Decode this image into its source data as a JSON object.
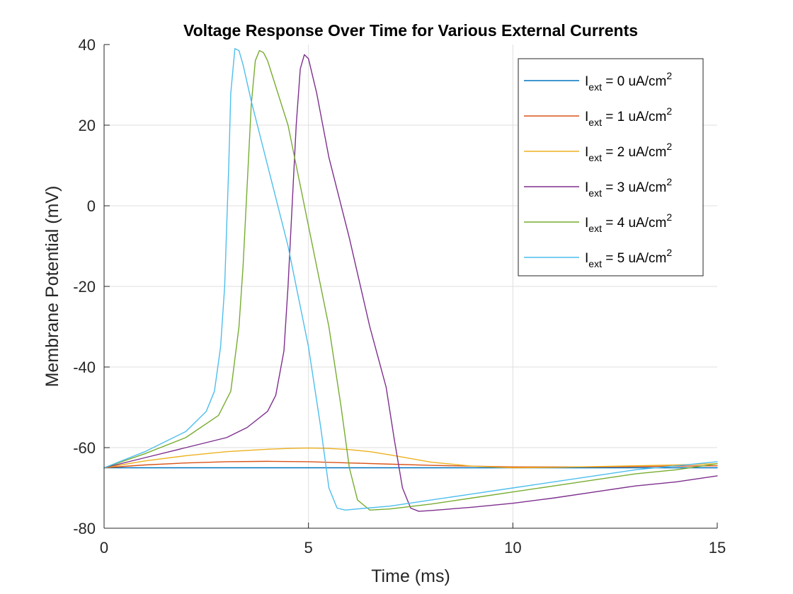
{
  "chart_data": {
    "type": "line",
    "title": "Voltage Response Over Time for Various External Currents",
    "xlabel": "Time (ms)",
    "ylabel": "Membrane Potential (mV)",
    "xlim": [
      0,
      15
    ],
    "ylim": [
      -80,
      40
    ],
    "xticks": [
      0,
      5,
      10,
      15
    ],
    "xtick_labels": [
      "0",
      "5",
      "10",
      "15"
    ],
    "yticks": [
      -80,
      -60,
      -40,
      -20,
      0,
      20,
      40
    ],
    "ytick_labels": [
      "-80",
      "-60",
      "-40",
      "-20",
      "0",
      "20",
      "40"
    ],
    "grid": true,
    "legend_position": "top-right",
    "series": [
      {
        "name": "I_ext = 0 uA/cm^2",
        "legend": {
          "prefix": "I",
          "sub": "ext",
          "mid": " = 0 uA/cm",
          "sup": "2"
        },
        "color": "#0072BD",
        "x": [
          0,
          1,
          2,
          3,
          4,
          5,
          6,
          7,
          8,
          9,
          10,
          11,
          12,
          13,
          14,
          15
        ],
        "y": [
          -65,
          -65,
          -65,
          -65,
          -65,
          -65,
          -65,
          -65,
          -65,
          -65,
          -65,
          -65,
          -65,
          -65,
          -65,
          -65
        ]
      },
      {
        "name": "I_ext = 1 uA/cm^2",
        "legend": {
          "prefix": "I",
          "sub": "ext",
          "mid": " = 1 uA/cm",
          "sup": "2"
        },
        "color": "#D95319",
        "x": [
          0,
          1,
          2,
          3,
          4,
          5,
          6,
          7,
          8,
          9,
          10,
          11,
          12,
          13,
          14,
          15
        ],
        "y": [
          -65,
          -64.3,
          -63.8,
          -63.5,
          -63.4,
          -63.5,
          -63.8,
          -64.1,
          -64.4,
          -64.6,
          -64.8,
          -64.8,
          -64.8,
          -64.7,
          -64.6,
          -64.5
        ]
      },
      {
        "name": "I_ext = 2 uA/cm^2",
        "legend": {
          "prefix": "I",
          "sub": "ext",
          "mid": " = 2 uA/cm",
          "sup": "2"
        },
        "color": "#EDB120",
        "x": [
          0,
          1,
          2,
          3,
          4,
          4.5,
          5,
          5.5,
          6,
          6.5,
          7,
          7.5,
          8,
          9,
          10,
          11,
          12,
          13,
          14,
          15
        ],
        "y": [
          -65,
          -63.3,
          -62.0,
          -61.0,
          -60.4,
          -60.2,
          -60.1,
          -60.2,
          -60.5,
          -61.0,
          -61.8,
          -62.7,
          -63.6,
          -64.6,
          -65.0,
          -64.9,
          -64.7,
          -64.5,
          -64.3,
          -64.0
        ]
      },
      {
        "name": "I_ext = 3 uA/cm^2",
        "legend": {
          "prefix": "I",
          "sub": "ext",
          "mid": " = 3 uA/cm",
          "sup": "2"
        },
        "color": "#7E2F8E",
        "x": [
          0,
          1,
          2,
          3,
          3.5,
          4,
          4.2,
          4.4,
          4.5,
          4.6,
          4.7,
          4.8,
          4.9,
          5.0,
          5.2,
          5.5,
          6.0,
          6.5,
          6.9,
          7.1,
          7.3,
          7.5,
          7.7,
          8,
          9,
          10,
          11,
          12,
          13,
          14,
          15
        ],
        "y": [
          -65,
          -62.5,
          -60.0,
          -57.5,
          -55.0,
          -51.0,
          -47.0,
          -36.0,
          -20.0,
          0.0,
          20.0,
          34.0,
          37.5,
          36.5,
          28.0,
          12.0,
          -8.0,
          -30.0,
          -45.0,
          -58.0,
          -70.0,
          -75.0,
          -75.8,
          -75.6,
          -74.8,
          -73.8,
          -72.5,
          -71.0,
          -69.5,
          -68.5,
          -67.0
        ]
      },
      {
        "name": "I_ext = 4 uA/cm^2",
        "legend": {
          "prefix": "I",
          "sub": "ext",
          "mid": " = 4 uA/cm",
          "sup": "2"
        },
        "color": "#77AC30",
        "x": [
          0,
          1,
          2,
          2.8,
          3.1,
          3.3,
          3.4,
          3.5,
          3.6,
          3.7,
          3.8,
          3.9,
          4.0,
          4.5,
          5.0,
          5.5,
          5.8,
          6.0,
          6.2,
          6.5,
          7,
          8,
          9,
          10,
          11,
          12,
          13,
          14,
          15
        ],
        "y": [
          -65,
          -61.5,
          -57.5,
          -52.0,
          -46.0,
          -30.0,
          -15.0,
          5.0,
          25.0,
          36.0,
          38.5,
          38.0,
          36.0,
          20.0,
          -5.0,
          -30.0,
          -50.0,
          -65.0,
          -73.0,
          -75.5,
          -75.2,
          -74.0,
          -72.5,
          -71.0,
          -69.5,
          -68.0,
          -66.5,
          -65.5,
          -64.0
        ]
      },
      {
        "name": "I_ext = 5 uA/cm^2",
        "legend": {
          "prefix": "I",
          "sub": "ext",
          "mid": " = 5 uA/cm",
          "sup": "2"
        },
        "color": "#4DBEEE",
        "x": [
          0,
          1,
          2,
          2.5,
          2.7,
          2.85,
          2.95,
          3.0,
          3.05,
          3.1,
          3.2,
          3.3,
          3.4,
          3.6,
          4.0,
          4.5,
          5.0,
          5.3,
          5.5,
          5.7,
          5.9,
          6.2,
          7,
          8,
          9,
          10,
          11,
          12,
          13,
          14,
          15
        ],
        "y": [
          -65,
          -61.0,
          -56.0,
          -51.0,
          -46.0,
          -35.0,
          -20.0,
          -5.0,
          10.0,
          28.0,
          39.0,
          38.5,
          35.0,
          26.0,
          10.0,
          -10.0,
          -35.0,
          -55.0,
          -70.0,
          -75.0,
          -75.5,
          -75.2,
          -74.5,
          -73.0,
          -71.5,
          -70.0,
          -68.5,
          -67.0,
          -65.5,
          -64.5,
          -63.5
        ]
      }
    ]
  }
}
